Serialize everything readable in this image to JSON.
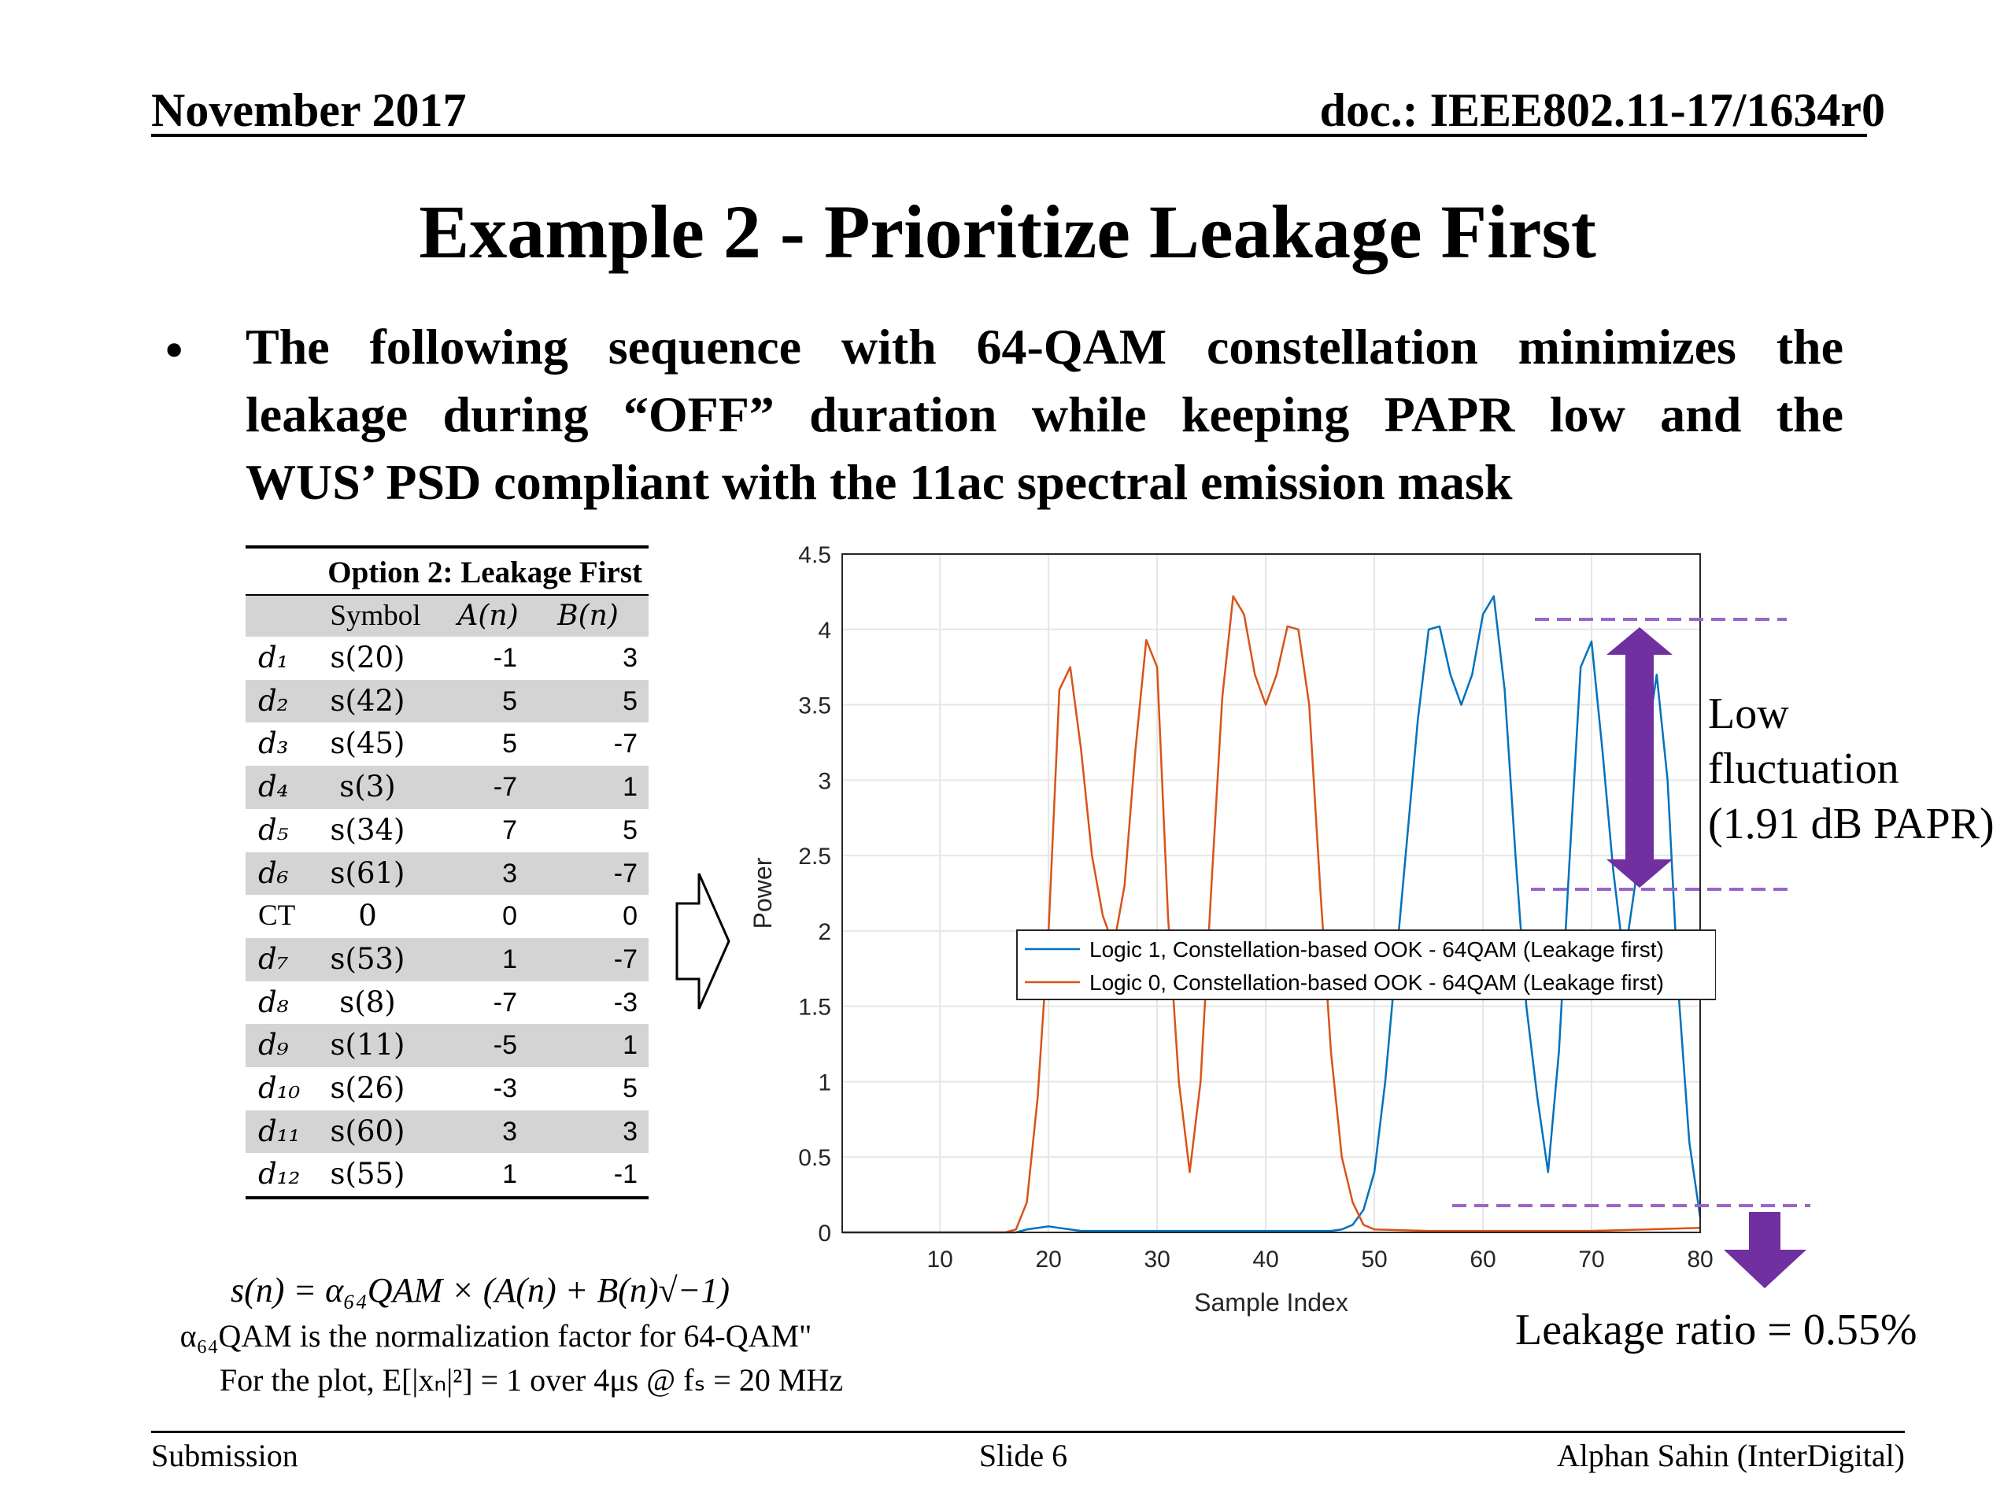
{
  "header": {
    "date": "November 2017",
    "doc": "doc.: IEEE802.11-17/1634r0"
  },
  "title": "Example 2 - Prioritize Leakage First",
  "bullet": {
    "lines": [
      "The following sequence with 64-QAM constellation minimizes the",
      "leakage during “OFF” duration while keeping PAPR low and the",
      "WUS’ PSD compliant with the 11ac spectral emission mask"
    ]
  },
  "table": {
    "title": "Option 2: Leakage First",
    "headers": [
      "",
      "Symbol",
      "A(n)",
      "B(n)"
    ],
    "rows": [
      {
        "d": "d₁",
        "sym": "s(20)",
        "a": "-1",
        "b": "3"
      },
      {
        "d": "d₂",
        "sym": "s(42)",
        "a": "5",
        "b": "5"
      },
      {
        "d": "d₃",
        "sym": "s(45)",
        "a": "5",
        "b": "-7"
      },
      {
        "d": "d₄",
        "sym": "s(3)",
        "a": "-7",
        "b": "1"
      },
      {
        "d": "d₅",
        "sym": "s(34)",
        "a": "7",
        "b": "5"
      },
      {
        "d": "d₆",
        "sym": "s(61)",
        "a": "3",
        "b": "-7"
      },
      {
        "d": "CT",
        "sym": "0",
        "a": "0",
        "b": "0"
      },
      {
        "d": "d₇",
        "sym": "s(53)",
        "a": "1",
        "b": "-7"
      },
      {
        "d": "d₈",
        "sym": "s(8)",
        "a": "-7",
        "b": "-3"
      },
      {
        "d": "d₉",
        "sym": "s(11)",
        "a": "-5",
        "b": "1"
      },
      {
        "d": "d₁₀",
        "sym": "s(26)",
        "a": "-3",
        "b": "5"
      },
      {
        "d": "d₁₁",
        "sym": "s(60)",
        "a": "3",
        "b": "3"
      },
      {
        "d": "d₁₂",
        "sym": "s(55)",
        "a": "1",
        "b": "-1"
      }
    ]
  },
  "formulas": {
    "line1": "s(n) = α₆₄QAM × (A(n) + B(n)√−1)",
    "line2": "α₆₄QAM is the normalization factor for 64-QAM\"",
    "line3": "For the plot, E[|xₙ|²] =  1 over 4μs @ fₛ = 20 MHz"
  },
  "annotations": {
    "fluctuation": [
      "Low",
      "fluctuation",
      "(1.91 dB PAPR)"
    ],
    "leakage": "Leakage ratio = 0.55%",
    "arrow_color": "#7030a0"
  },
  "footer": {
    "left": "Submission",
    "center": "Slide 6",
    "right": "Alphan Sahin (InterDigital)"
  },
  "chart_data": {
    "type": "line",
    "xlabel": "Sample Index",
    "ylabel": "Power",
    "xlim": [
      1,
      80
    ],
    "ylim": [
      0,
      4.5
    ],
    "xticks": [
      10,
      20,
      30,
      40,
      50,
      60,
      70,
      80
    ],
    "yticks": [
      0,
      0.5,
      1,
      1.5,
      2,
      2.5,
      3,
      3.5,
      4,
      4.5
    ],
    "ytick_labels": [
      "0",
      "0.5",
      "1",
      "1.5",
      "2",
      "2.5",
      "3",
      "3.5",
      "4",
      "4.5"
    ],
    "grid": true,
    "legend_position": "center-right",
    "series": [
      {
        "name": "Logic 1, Constellation-based OOK - 64QAM (Leakage first)",
        "color": "#0072bd",
        "x": [
          1,
          17,
          18,
          19,
          20,
          21,
          22,
          23,
          26,
          30,
          34,
          38,
          42,
          46,
          47,
          48,
          49,
          50,
          51,
          52,
          53,
          54,
          55,
          56,
          57,
          58,
          59,
          60,
          61,
          62,
          63,
          64,
          65,
          66,
          67,
          68,
          69,
          70,
          71,
          72,
          73,
          74,
          75,
          76,
          77,
          78,
          79,
          80
        ],
        "y": [
          0,
          0,
          0.02,
          0.03,
          0.04,
          0.03,
          0.02,
          0.01,
          0.01,
          0.01,
          0.01,
          0.01,
          0.01,
          0.01,
          0.02,
          0.05,
          0.15,
          0.4,
          1.0,
          1.8,
          2.6,
          3.4,
          4.0,
          4.02,
          3.7,
          3.5,
          3.7,
          4.1,
          4.22,
          3.6,
          2.5,
          1.5,
          0.9,
          0.4,
          1.2,
          2.5,
          3.75,
          3.92,
          3.2,
          2.4,
          1.8,
          2.3,
          3.2,
          3.7,
          3.0,
          1.6,
          0.6,
          0.1
        ]
      },
      {
        "name": "Logic 0, Constellation-based OOK - 64QAM (Leakage first)",
        "color": "#d95319",
        "x": [
          1,
          16,
          17,
          18,
          19,
          20,
          21,
          22,
          23,
          24,
          25,
          26,
          27,
          28,
          29,
          30,
          31,
          32,
          33,
          34,
          35,
          36,
          37,
          38,
          39,
          40,
          41,
          42,
          43,
          44,
          45,
          46,
          47,
          48,
          49,
          50,
          55,
          60,
          65,
          70,
          75,
          80
        ],
        "y": [
          0,
          0,
          0.02,
          0.2,
          0.9,
          2.0,
          3.6,
          3.75,
          3.2,
          2.5,
          2.1,
          1.9,
          2.3,
          3.2,
          3.93,
          3.75,
          2.1,
          1.0,
          0.4,
          1.0,
          2.3,
          3.55,
          4.22,
          4.1,
          3.7,
          3.5,
          3.7,
          4.02,
          4.0,
          3.5,
          2.3,
          1.2,
          0.5,
          0.2,
          0.05,
          0.02,
          0.01,
          0.01,
          0.01,
          0.01,
          0.02,
          0.03
        ]
      }
    ]
  }
}
